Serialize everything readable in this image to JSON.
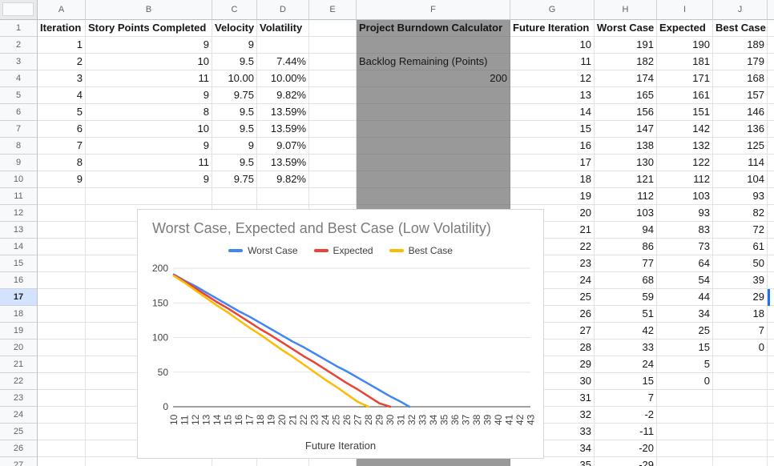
{
  "sheet": {
    "column_headers": [
      "A",
      "B",
      "C",
      "D",
      "E",
      "F",
      "G",
      "H",
      "I",
      "J",
      ""
    ],
    "row_count": 27,
    "selected_row": 17,
    "left_table": {
      "headers": [
        "Iteration",
        "Story Points Completed",
        "Velocity",
        "Volatility"
      ],
      "rows": [
        [
          "1",
          "9",
          "9",
          ""
        ],
        [
          "2",
          "10",
          "9.5",
          "7.44%"
        ],
        [
          "3",
          "11",
          "10.00",
          "10.00%"
        ],
        [
          "4",
          "9",
          "9.75",
          "9.82%"
        ],
        [
          "5",
          "8",
          "9.5",
          "13.59%"
        ],
        [
          "6",
          "10",
          "9.5",
          "13.59%"
        ],
        [
          "7",
          "9",
          "9",
          "9.07%"
        ],
        [
          "8",
          "11",
          "9.5",
          "13.59%"
        ],
        [
          "9",
          "9",
          "9.75",
          "9.82%"
        ]
      ]
    },
    "calculator": {
      "title": "Project Burndown Calculator",
      "label": "Backlog Remaining (Points)",
      "value": "200",
      "bg_color": "#999999"
    },
    "right_table": {
      "headers": [
        "Future Iteration",
        "Worst Case",
        "Expected",
        "Best Case"
      ],
      "rows": [
        [
          "10",
          "191",
          "190",
          "189"
        ],
        [
          "11",
          "182",
          "181",
          "179"
        ],
        [
          "12",
          "174",
          "171",
          "168"
        ],
        [
          "13",
          "165",
          "161",
          "157"
        ],
        [
          "14",
          "156",
          "151",
          "146"
        ],
        [
          "15",
          "147",
          "142",
          "136"
        ],
        [
          "16",
          "138",
          "132",
          "125"
        ],
        [
          "17",
          "130",
          "122",
          "114"
        ],
        [
          "18",
          "121",
          "112",
          "104"
        ],
        [
          "19",
          "112",
          "103",
          "93"
        ],
        [
          "20",
          "103",
          "93",
          "82"
        ],
        [
          "21",
          "94",
          "83",
          "72"
        ],
        [
          "22",
          "86",
          "73",
          "61"
        ],
        [
          "23",
          "77",
          "64",
          "50"
        ],
        [
          "24",
          "68",
          "54",
          "39"
        ],
        [
          "25",
          "59",
          "44",
          "29"
        ],
        [
          "26",
          "51",
          "34",
          "18"
        ],
        [
          "27",
          "42",
          "25",
          "7"
        ],
        [
          "28",
          "33",
          "15",
          "0"
        ],
        [
          "29",
          "24",
          "5",
          ""
        ],
        [
          "30",
          "15",
          "0",
          ""
        ],
        [
          "31",
          "7",
          "",
          ""
        ],
        [
          "32",
          "-2",
          "",
          ""
        ],
        [
          "33",
          "-11",
          "",
          ""
        ],
        [
          "34",
          "-20",
          "",
          ""
        ],
        [
          "35",
          "-29",
          "",
          ""
        ]
      ]
    },
    "selection_color": "#1a73e8"
  },
  "chart_data": {
    "type": "line",
    "title": "Worst Case, Expected and Best Case (Low Volatility)",
    "xlabel": "Future Iteration",
    "ylabel": "",
    "x": [
      10,
      11,
      12,
      13,
      14,
      15,
      16,
      17,
      18,
      19,
      20,
      21,
      22,
      23,
      24,
      25,
      26,
      27,
      28,
      29,
      30,
      31,
      32,
      33,
      34,
      35,
      36,
      37,
      38,
      39,
      40,
      41,
      42,
      43
    ],
    "yticks": [
      0,
      50,
      100,
      150,
      200
    ],
    "ylim": [
      0,
      200
    ],
    "grid": true,
    "legend_position": "top",
    "clip_at_zero": true,
    "series": [
      {
        "name": "Worst Case",
        "color": "#4285F4",
        "values": [
          191,
          182,
          174,
          165,
          156,
          147,
          138,
          130,
          121,
          112,
          103,
          94,
          86,
          77,
          68,
          59,
          51,
          42,
          33,
          24,
          15,
          7,
          -2
        ]
      },
      {
        "name": "Expected",
        "color": "#EA4335",
        "values": [
          190,
          181,
          171,
          161,
          151,
          142,
          132,
          122,
          112,
          103,
          93,
          83,
          73,
          64,
          54,
          44,
          34,
          25,
          15,
          5,
          0
        ]
      },
      {
        "name": "Best Case",
        "color": "#FBBC04",
        "values": [
          189,
          179,
          168,
          157,
          146,
          136,
          125,
          114,
          104,
          93,
          82,
          72,
          61,
          50,
          39,
          29,
          18,
          7,
          0
        ]
      }
    ]
  }
}
